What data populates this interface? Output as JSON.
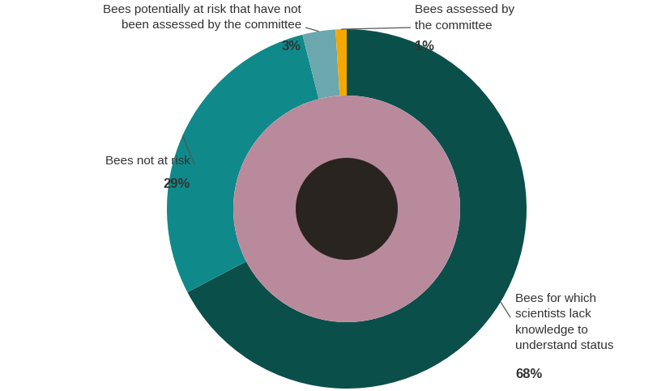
{
  "chart_data": {
    "type": "pie",
    "categories": [
      "Bees for which scientists lack knowledge to understand status",
      "Bees not at risk",
      "Bees potentially at risk that have not been assessed by the committee",
      "Bees assessed by the committee"
    ],
    "values": [
      68,
      29,
      3,
      1
    ],
    "value_labels": [
      "68%",
      "29%",
      "3%",
      "1%"
    ],
    "colors": [
      "#0b4f4a",
      "#10898a",
      "#6aa8ad",
      "#f5a800"
    ],
    "data_labels": true
  }
}
